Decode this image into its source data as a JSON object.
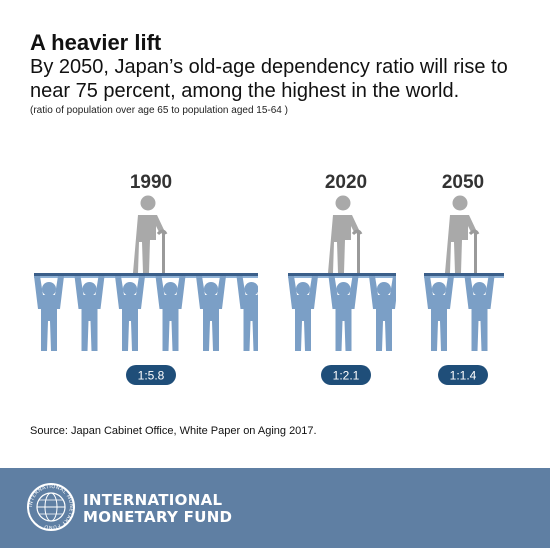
{
  "header": {
    "title": "A heavier lift",
    "subtitle": "By 2050, Japan’s old-age dependency ratio will rise to near 75 percent, among the highest in the world.",
    "note": "(ratio of population over age 65 to population aged 15-64 )"
  },
  "chart_data": {
    "type": "pictograph",
    "categories": [
      "1990",
      "2020",
      "2050"
    ],
    "ratio_labels": [
      "1:5.8",
      "1:2.1",
      "1:1.4"
    ],
    "workers_per_elder": [
      5.8,
      2.1,
      1.4
    ],
    "elder_per_group": 1
  },
  "source": "Source: Japan Cabinet Office, White Paper on Aging 2017.",
  "footer": {
    "org_line1": "INTERNATIONAL",
    "org_line2": "MONETARY FUND",
    "seal_text": "INTERNATIONAL MONETARY FUND"
  },
  "colors": {
    "worker": "#7b9fc6",
    "bar_top": "#3b5f8a",
    "bar_bottom": "#8fb2d6",
    "elder": "#a9a9a9",
    "badge": "#1f4e79",
    "footer": "#5f7fa3"
  }
}
